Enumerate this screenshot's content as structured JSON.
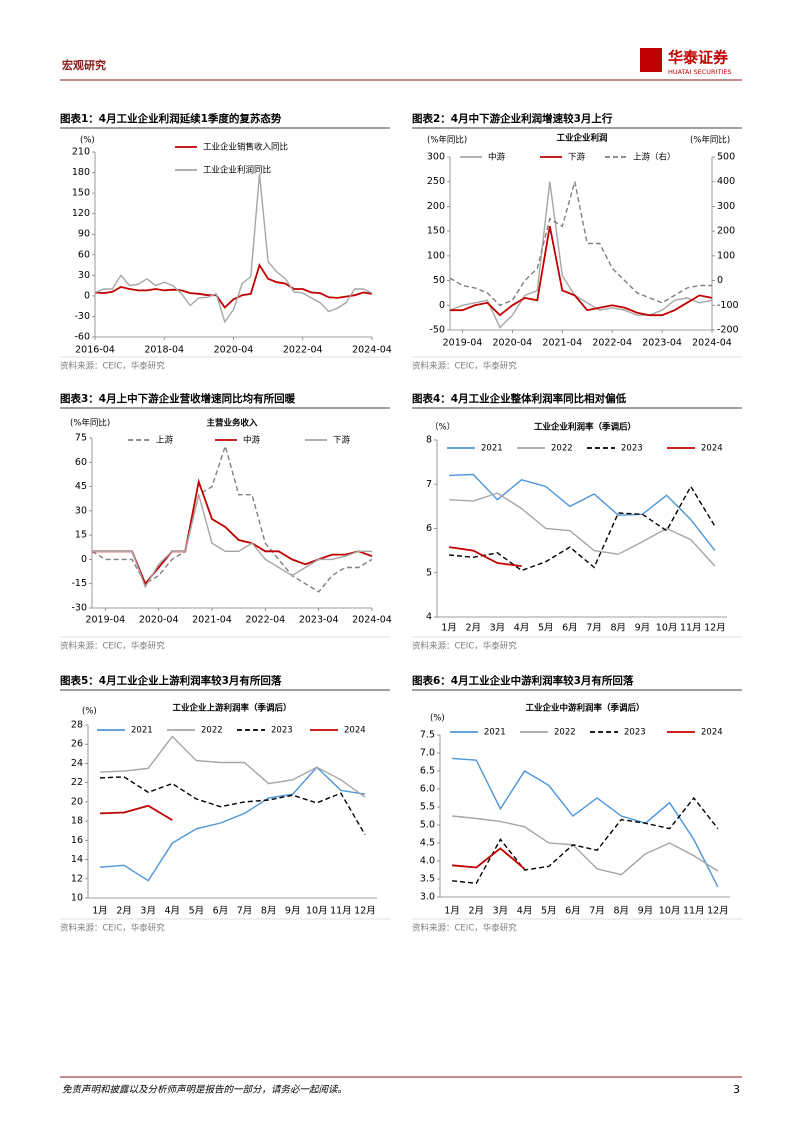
{
  "header": {
    "section": "宏观研究",
    "brand": "华泰证券",
    "brand_en": "HUATAI SECURITIES"
  },
  "footer": {
    "disclaimer": "免责声明和披露以及分析师声明是报告的一部分，请务必一起阅读。",
    "page": "3"
  },
  "chart_data": [
    {
      "type": "line",
      "caption": "图表1：4月工业企业利润延续1季度的复苏态势",
      "source": "资料来源：CEIC，华泰研究",
      "y_label": "(%)",
      "x": [
        "2016-04",
        "2016-07",
        "2016-10",
        "2017-01",
        "2017-04",
        "2017-07",
        "2017-10",
        "2018-01",
        "2018-04",
        "2018-07",
        "2018-10",
        "2019-01",
        "2019-04",
        "2019-07",
        "2019-10",
        "2020-01",
        "2020-04",
        "2020-07",
        "2020-10",
        "2021-01",
        "2021-04",
        "2021-07",
        "2021-10",
        "2022-01",
        "2022-04",
        "2022-07",
        "2022-10",
        "2023-01",
        "2023-04",
        "2023-07",
        "2023-10",
        "2024-01",
        "2024-04"
      ],
      "xticks": [
        "2016-04",
        "2018-04",
        "2020-04",
        "2022-04",
        "2024-04"
      ],
      "ylim": [
        -60,
        210
      ],
      "yticks": [
        -60,
        -30,
        0,
        30,
        60,
        90,
        120,
        150,
        180,
        210
      ],
      "series": [
        {
          "name": "工业企业销售收入同比",
          "color": "#c00000",
          "values": [
            5,
            4,
            6,
            13,
            10,
            8,
            8,
            10,
            8,
            9,
            8,
            4,
            3,
            1,
            1,
            -17,
            -5,
            1,
            3,
            45,
            25,
            20,
            18,
            10,
            10,
            5,
            4,
            -2,
            -3,
            -1,
            1,
            5,
            3
          ]
        },
        {
          "name": "工业企业利润同比",
          "color": "#a6a6a6",
          "values": [
            5,
            10,
            10,
            30,
            15,
            17,
            25,
            15,
            20,
            15,
            3,
            -14,
            -3,
            -2,
            3,
            -38,
            -20,
            18,
            28,
            178,
            50,
            35,
            25,
            6,
            4,
            -3,
            -10,
            -23,
            -18,
            -10,
            10,
            10,
            4
          ]
        }
      ]
    },
    {
      "type": "line",
      "caption": "图表2：4月中下游企业利润增速较3月上行",
      "source": "资料来源：CEIC，华泰研究",
      "title": "工业企业利润",
      "y_label": "(%年同比)",
      "y2_label": "(%年同比)",
      "x": [
        "2019-01",
        "2019-04",
        "2019-07",
        "2019-10",
        "2020-01",
        "2020-04",
        "2020-07",
        "2020-10",
        "2021-01",
        "2021-04",
        "2021-07",
        "2021-10",
        "2022-01",
        "2022-04",
        "2022-07",
        "2022-10",
        "2023-01",
        "2023-04",
        "2023-07",
        "2023-10",
        "2024-01",
        "2024-04"
      ],
      "xticks": [
        "2019-04",
        "2020-04",
        "2021-04",
        "2022-04",
        "2023-04",
        "2024-04"
      ],
      "ylim": [
        -50,
        300
      ],
      "yticks": [
        -50,
        0,
        50,
        100,
        150,
        200,
        250,
        300
      ],
      "y2lim": [
        -200,
        500
      ],
      "y2ticks": [
        -200,
        -100,
        0,
        100,
        200,
        300,
        400,
        500
      ],
      "series": [
        {
          "name": "中游",
          "color": "#a6a6a6",
          "values": [
            -10,
            0,
            5,
            10,
            -45,
            -20,
            20,
            30,
            250,
            60,
            20,
            5,
            -10,
            -5,
            -10,
            -20,
            -20,
            -10,
            10,
            15,
            5,
            10
          ]
        },
        {
          "name": "下游",
          "color": "#c00000",
          "values": [
            -10,
            -10,
            0,
            5,
            -20,
            0,
            15,
            10,
            160,
            30,
            20,
            -10,
            -5,
            0,
            -5,
            -15,
            -20,
            -20,
            -10,
            5,
            20,
            15
          ]
        },
        {
          "name": "上游（右）",
          "color": "#7f7f7f",
          "dashed": true,
          "axis": "y2",
          "values": [
            10,
            -20,
            -30,
            -50,
            -100,
            -80,
            0,
            50,
            250,
            220,
            400,
            150,
            150,
            50,
            0,
            -50,
            -70,
            -90,
            -60,
            -30,
            -20,
            -20
          ]
        }
      ]
    },
    {
      "type": "line",
      "caption": "图表3：4月上中下游企业营收增速同比均有所回暖",
      "source": "资料来源：CEIC，华泰研究",
      "title": "主营业务收入",
      "y_label": "(%年同比)",
      "x": [
        "2019-01",
        "2019-04",
        "2019-07",
        "2019-10",
        "2020-01",
        "2020-04",
        "2020-07",
        "2020-10",
        "2021-01",
        "2021-04",
        "2021-07",
        "2021-10",
        "2022-01",
        "2022-04",
        "2022-07",
        "2022-10",
        "2023-01",
        "2023-04",
        "2023-07",
        "2023-10",
        "2024-01",
        "2024-04"
      ],
      "xticks": [
        "2019-04",
        "2020-04",
        "2021-04",
        "2022-04",
        "2023-04",
        "2024-04"
      ],
      "ylim": [
        -30,
        75
      ],
      "yticks": [
        -30,
        -15,
        0,
        15,
        30,
        45,
        60,
        75
      ],
      "series": [
        {
          "name": "上游",
          "color": "#7f7f7f",
          "dashed": true,
          "values": [
            5,
            0,
            0,
            0,
            -15,
            -10,
            0,
            5,
            40,
            45,
            70,
            40,
            40,
            10,
            0,
            -10,
            -15,
            -20,
            -10,
            -5,
            -5,
            0
          ]
        },
        {
          "name": "中游",
          "color": "#c00000",
          "values": [
            5,
            5,
            5,
            5,
            -15,
            -5,
            5,
            5,
            48,
            25,
            20,
            12,
            10,
            5,
            5,
            0,
            -3,
            0,
            3,
            3,
            5,
            2
          ]
        },
        {
          "name": "下游",
          "color": "#a6a6a6",
          "values": [
            5,
            5,
            5,
            5,
            -17,
            -3,
            5,
            5,
            40,
            10,
            5,
            5,
            10,
            0,
            -5,
            -10,
            -5,
            0,
            0,
            2,
            5,
            5
          ]
        }
      ]
    },
    {
      "type": "line",
      "caption": "图表4：4月工业企业整体利润率同比相对偏低",
      "source": "资料来源：CEIC，华泰研究",
      "title": "工业企业利润率（季调后）",
      "y_label": "（%）",
      "categories": [
        "1月",
        "2月",
        "3月",
        "4月",
        "5月",
        "6月",
        "7月",
        "8月",
        "9月",
        "10月",
        "11月",
        "12月"
      ],
      "ylim": [
        4,
        8
      ],
      "yticks": [
        4,
        5,
        6,
        7,
        8
      ],
      "series": [
        {
          "name": "2021",
          "color": "#4e95d9",
          "values": [
            7.2,
            7.22,
            6.65,
            7.1,
            6.95,
            6.5,
            6.78,
            6.3,
            6.32,
            6.75,
            6.2,
            5.5
          ]
        },
        {
          "name": "2022",
          "color": "#a6a6a6",
          "values": [
            6.65,
            6.62,
            6.8,
            6.45,
            6.0,
            5.95,
            5.5,
            5.42,
            5.7,
            6.0,
            5.75,
            5.15
          ]
        },
        {
          "name": "2023",
          "color": "#000000",
          "dashed": true,
          "values": [
            5.4,
            5.35,
            5.45,
            5.05,
            5.25,
            5.58,
            5.12,
            6.35,
            6.32,
            5.95,
            6.95,
            6.05
          ]
        },
        {
          "name": "2024",
          "color": "#c00000",
          "values": [
            5.58,
            5.5,
            5.22,
            5.15,
            null,
            null,
            null,
            null,
            null,
            null,
            null,
            null
          ]
        }
      ]
    },
    {
      "type": "line",
      "caption": "图表5：4月工业企业上游利润率较3月有所回落",
      "source": "资料来源：CEIC，华泰研究",
      "title": "工业企业上游利润率（季调后）",
      "y_label": "(%)",
      "categories": [
        "1月",
        "2月",
        "3月",
        "4月",
        "5月",
        "6月",
        "7月",
        "8月",
        "9月",
        "10月",
        "11月",
        "12月"
      ],
      "ylim": [
        10,
        28
      ],
      "yticks": [
        10,
        12,
        14,
        16,
        18,
        20,
        22,
        24,
        26,
        28
      ],
      "series": [
        {
          "name": "2021",
          "color": "#4e95d9",
          "values": [
            13.2,
            13.4,
            11.8,
            15.7,
            17.2,
            17.8,
            18.8,
            20.4,
            20.8,
            23.6,
            21.2,
            20.8
          ]
        },
        {
          "name": "2022",
          "color": "#a6a6a6",
          "values": [
            23.1,
            23.2,
            23.5,
            26.8,
            24.3,
            24.1,
            24.1,
            21.9,
            22.3,
            23.6,
            22.3,
            20.5
          ]
        },
        {
          "name": "2023",
          "color": "#000000",
          "dashed": true,
          "values": [
            22.5,
            22.6,
            21.0,
            21.9,
            20.3,
            19.5,
            20.0,
            20.2,
            20.7,
            19.9,
            20.9,
            16.6
          ]
        },
        {
          "name": "2024",
          "color": "#c00000",
          "values": [
            18.8,
            18.9,
            19.6,
            18.1,
            null,
            null,
            null,
            null,
            null,
            null,
            null,
            null
          ]
        }
      ]
    },
    {
      "type": "line",
      "caption": "图表6：4月工业企业中游利润率较3月有所回落",
      "source": "资料来源：CEIC，华泰研究",
      "title": "工业企业中游利润率（季调后）",
      "y_label": "(%)",
      "categories": [
        "1月",
        "2月",
        "3月",
        "4月",
        "5月",
        "6月",
        "7月",
        "8月",
        "9月",
        "10月",
        "11月",
        "12月"
      ],
      "ylim": [
        3,
        7.5
      ],
      "yticks": [
        {
          "value": 3,
          "label": "3.0"
        },
        3.5,
        {
          "value": 4,
          "label": "4.0"
        },
        4.5,
        {
          "value": 5,
          "label": "5.0"
        },
        5.5,
        {
          "value": 6,
          "label": "6.0"
        },
        6.5,
        {
          "value": 7,
          "label": "7.0"
        },
        7.5
      ],
      "series": [
        {
          "name": "2021",
          "color": "#4e95d9",
          "values": [
            6.85,
            6.8,
            5.45,
            6.5,
            6.1,
            5.25,
            5.75,
            5.25,
            5.05,
            5.62,
            4.6,
            3.28
          ]
        },
        {
          "name": "2022",
          "color": "#a6a6a6",
          "values": [
            5.25,
            5.18,
            5.1,
            4.95,
            4.5,
            4.45,
            3.78,
            3.62,
            4.2,
            4.5,
            4.15,
            3.72
          ]
        },
        {
          "name": "2023",
          "color": "#000000",
          "dashed": true,
          "values": [
            3.45,
            3.38,
            4.6,
            3.75,
            3.85,
            4.45,
            4.3,
            5.15,
            5.05,
            4.9,
            5.75,
            4.9
          ]
        },
        {
          "name": "2024",
          "color": "#c00000",
          "values": [
            3.88,
            3.82,
            4.35,
            3.78,
            null,
            null,
            null,
            null,
            null,
            null,
            null,
            null
          ]
        }
      ]
    }
  ]
}
